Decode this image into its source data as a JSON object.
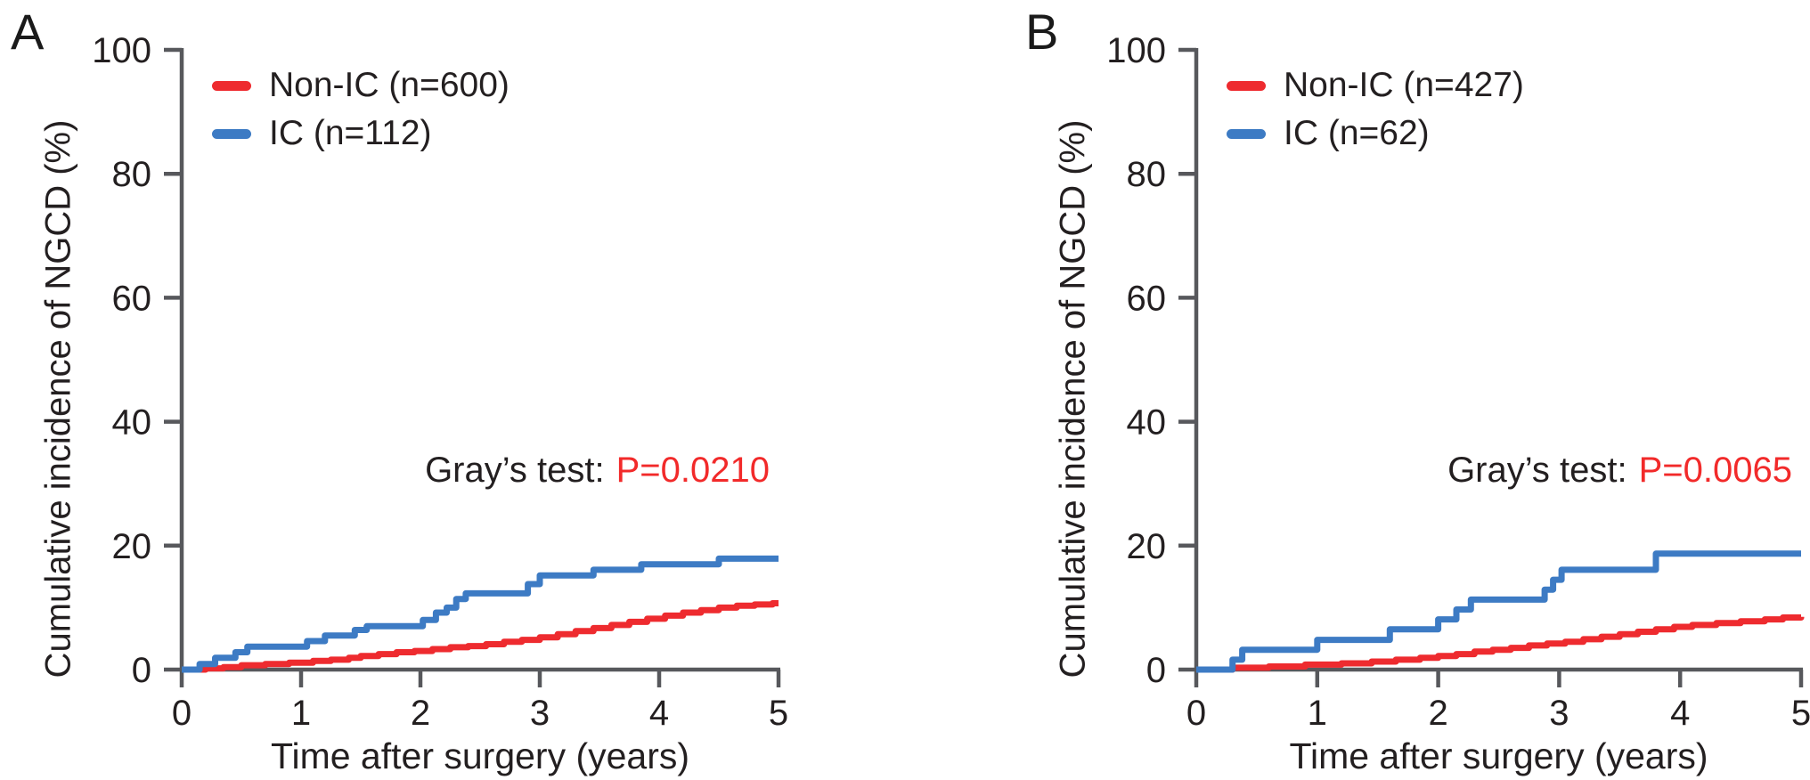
{
  "chart_data": [
    {
      "type": "line",
      "subtype": "cumulative-incidence-step",
      "panel_label": "A",
      "xlabel": "Time after surgery (years)",
      "ylabel": "Cumulative incidence of NGCD (%)",
      "xlim": [
        0,
        5
      ],
      "ylim": [
        0,
        100
      ],
      "xticks": [
        0,
        1,
        2,
        3,
        4,
        5
      ],
      "yticks": [
        0,
        20,
        40,
        60,
        80,
        100
      ],
      "grid": false,
      "legend_position": "top-left-inside",
      "annotation": {
        "text_black": "Gray’s test:",
        "text_red": "P=0.0210",
        "pvalue_color": "#f22a2a"
      },
      "series": [
        {
          "name": "Non-IC (n=600)",
          "color": "#ee2b2f",
          "steps": [
            [
              0,
              0
            ],
            [
              0.2,
              0.2
            ],
            [
              0.35,
              0.4
            ],
            [
              0.5,
              0.7
            ],
            [
              0.7,
              0.9
            ],
            [
              0.9,
              1.1
            ],
            [
              1.1,
              1.4
            ],
            [
              1.25,
              1.6
            ],
            [
              1.4,
              1.9
            ],
            [
              1.5,
              2.2
            ],
            [
              1.65,
              2.5
            ],
            [
              1.8,
              2.8
            ],
            [
              1.95,
              3.0
            ],
            [
              2.1,
              3.3
            ],
            [
              2.25,
              3.6
            ],
            [
              2.4,
              3.8
            ],
            [
              2.55,
              4.1
            ],
            [
              2.7,
              4.5
            ],
            [
              2.85,
              4.8
            ],
            [
              3.0,
              5.2
            ],
            [
              3.15,
              5.7
            ],
            [
              3.3,
              6.2
            ],
            [
              3.45,
              6.7
            ],
            [
              3.6,
              7.2
            ],
            [
              3.75,
              7.7
            ],
            [
              3.9,
              8.2
            ],
            [
              4.05,
              8.7
            ],
            [
              4.2,
              9.2
            ],
            [
              4.35,
              9.6
            ],
            [
              4.5,
              10.0
            ],
            [
              4.65,
              10.3
            ],
            [
              4.8,
              10.5
            ],
            [
              4.95,
              10.7
            ],
            [
              5,
              10.7
            ]
          ]
        },
        {
          "name": "IC (n=112)",
          "color": "#3d7bc4",
          "steps": [
            [
              0,
              0
            ],
            [
              0.15,
              0.9
            ],
            [
              0.28,
              1.9
            ],
            [
              0.45,
              2.8
            ],
            [
              0.55,
              3.7
            ],
            [
              1.05,
              4.6
            ],
            [
              1.2,
              5.5
            ],
            [
              1.45,
              6.4
            ],
            [
              1.55,
              7.0
            ],
            [
              2.02,
              8.0
            ],
            [
              2.13,
              9.2
            ],
            [
              2.22,
              10.0
            ],
            [
              2.3,
              11.4
            ],
            [
              2.38,
              12.3
            ],
            [
              2.9,
              13.8
            ],
            [
              3.0,
              15.2
            ],
            [
              3.45,
              16.1
            ],
            [
              3.85,
              17.0
            ],
            [
              4.5,
              17.9
            ],
            [
              5,
              17.9
            ]
          ]
        }
      ]
    },
    {
      "type": "line",
      "subtype": "cumulative-incidence-step",
      "panel_label": "B",
      "xlabel": "Time after surgery (years)",
      "ylabel": "Cumulative incidence of NGCD (%)",
      "xlim": [
        0,
        5
      ],
      "ylim": [
        0,
        100
      ],
      "xticks": [
        0,
        1,
        2,
        3,
        4,
        5
      ],
      "yticks": [
        0,
        20,
        40,
        60,
        80,
        100
      ],
      "grid": false,
      "legend_position": "top-left-inside",
      "annotation": {
        "text_black": "Gray’s test:",
        "text_red": "P=0.0065",
        "pvalue_color": "#f22a2a"
      },
      "series": [
        {
          "name": "Non-IC (n=427)",
          "color": "#ee2b2f",
          "steps": [
            [
              0,
              0
            ],
            [
              0.3,
              0.3
            ],
            [
              0.6,
              0.5
            ],
            [
              0.9,
              0.8
            ],
            [
              1.2,
              1.0
            ],
            [
              1.45,
              1.3
            ],
            [
              1.65,
              1.6
            ],
            [
              1.85,
              1.9
            ],
            [
              2.0,
              2.2
            ],
            [
              2.15,
              2.5
            ],
            [
              2.3,
              2.9
            ],
            [
              2.45,
              3.2
            ],
            [
              2.6,
              3.5
            ],
            [
              2.75,
              3.9
            ],
            [
              2.9,
              4.2
            ],
            [
              3.05,
              4.5
            ],
            [
              3.2,
              4.9
            ],
            [
              3.35,
              5.3
            ],
            [
              3.5,
              5.7
            ],
            [
              3.65,
              6.1
            ],
            [
              3.8,
              6.5
            ],
            [
              3.95,
              6.9
            ],
            [
              4.1,
              7.2
            ],
            [
              4.3,
              7.5
            ],
            [
              4.5,
              7.8
            ],
            [
              4.7,
              8.1
            ],
            [
              4.85,
              8.4
            ],
            [
              5,
              8.5
            ]
          ]
        },
        {
          "name": "IC (n=62)",
          "color": "#3d7bc4",
          "steps": [
            [
              0,
              0
            ],
            [
              0.3,
              1.6
            ],
            [
              0.38,
              3.2
            ],
            [
              1.0,
              4.8
            ],
            [
              1.6,
              6.5
            ],
            [
              2.0,
              8.1
            ],
            [
              2.15,
              9.7
            ],
            [
              2.27,
              11.3
            ],
            [
              2.88,
              12.9
            ],
            [
              2.95,
              14.5
            ],
            [
              3.02,
              16.1
            ],
            [
              3.8,
              18.7
            ],
            [
              5,
              18.7
            ]
          ]
        }
      ]
    }
  ],
  "style": {
    "axis_color": "#57585c",
    "text_color": "#231f20"
  }
}
